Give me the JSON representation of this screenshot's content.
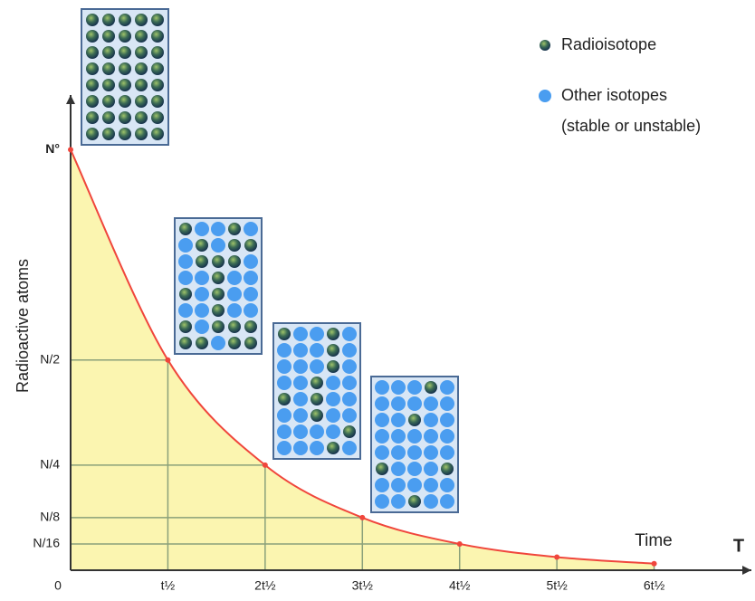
{
  "chart_data": {
    "type": "line",
    "y_label": "Radioactive atoms",
    "x_label": "Time",
    "x_axis_end_label": "T",
    "x": [
      0,
      1,
      2,
      3,
      4,
      5,
      6
    ],
    "series": [
      {
        "color": "#f0463c",
        "values": [
          1,
          0.5,
          0.25,
          0.125,
          0.0625,
          0.03125,
          0.015625
        ]
      }
    ],
    "xlim": [
      0,
      7
    ],
    "ylim": [
      0,
      1.13
    ],
    "xticks": [
      {
        "value": 0,
        "label": "0"
      },
      {
        "value": 1,
        "label": "t½"
      },
      {
        "value": 2,
        "label": "2t½"
      },
      {
        "value": 3,
        "label": "3t½"
      },
      {
        "value": 4,
        "label": "4t½"
      },
      {
        "value": 5,
        "label": "5t½"
      },
      {
        "value": 6,
        "label": "6t½"
      }
    ],
    "yticks": [
      {
        "value": 0.0625,
        "label": "N/16"
      },
      {
        "value": 0.125,
        "label": "N/8"
      },
      {
        "value": 0.25,
        "label": "N/4"
      },
      {
        "value": 0.5,
        "label": "N/2"
      },
      {
        "value": 1,
        "label": "N°"
      }
    ],
    "legend": [
      {
        "lines": [
          "Radioisotope"
        ]
      },
      {
        "lines": [
          "Other isotopes",
          "(stable or unstable)"
        ]
      }
    ]
  }
}
